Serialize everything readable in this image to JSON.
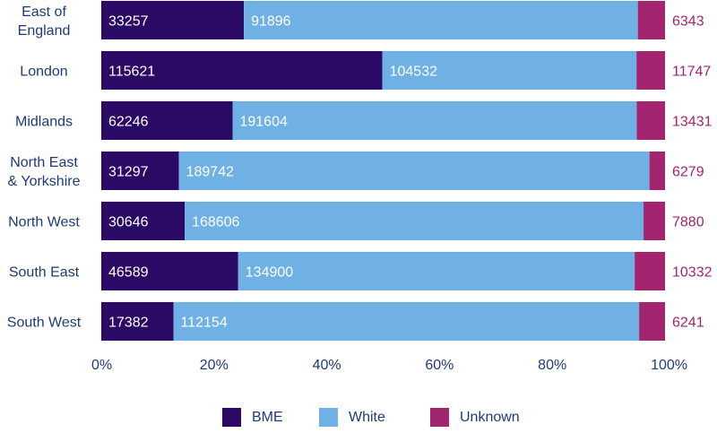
{
  "chart_data": {
    "type": "bar",
    "orientation": "horizontal",
    "stacked": "percent",
    "categories": [
      [
        "East of",
        "England"
      ],
      [
        "London"
      ],
      [
        "Midlands"
      ],
      [
        "North East",
        "& Yorkshire"
      ],
      [
        "North West"
      ],
      [
        "South East"
      ],
      [
        "South West"
      ]
    ],
    "series": [
      {
        "name": "BME",
        "color": "#2b0a66",
        "values": [
          33257,
          115621,
          62246,
          31297,
          30646,
          46589,
          17382
        ]
      },
      {
        "name": "White",
        "color": "#6fb1e4",
        "values": [
          91896,
          104532,
          191604,
          189742,
          168606,
          134900,
          112154
        ]
      },
      {
        "name": "Unknown",
        "color": "#a3256f",
        "values": [
          6343,
          11747,
          13431,
          6279,
          7880,
          10332,
          6241
        ]
      }
    ],
    "x_ticks": [
      "0%",
      "20%",
      "40%",
      "60%",
      "80%",
      "100%"
    ],
    "xlim": [
      0,
      100
    ],
    "grid": false,
    "legend_position": "bottom"
  }
}
